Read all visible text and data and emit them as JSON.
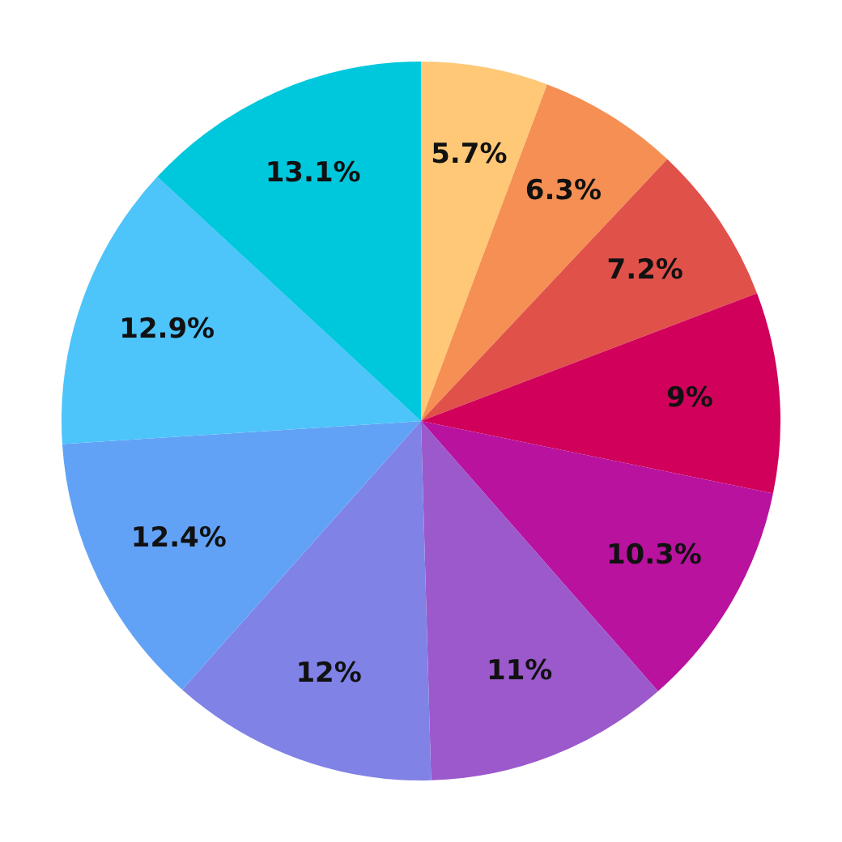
{
  "chart_data": {
    "type": "pie",
    "categories": [
      null,
      null,
      null,
      null,
      null,
      null,
      null,
      null,
      null,
      null
    ],
    "values": [
      5.7,
      6.3,
      7.2,
      9,
      10.3,
      11,
      12,
      12.4,
      12.9,
      13.1
    ],
    "value_labels": [
      "5.7%",
      "6.3%",
      "7.2%",
      "9%",
      "10.3%",
      "11%",
      "12%",
      "12.4%",
      "12.9%",
      "13.1%"
    ],
    "colors": [
      "#fec877",
      "#f58f53",
      "#e0514a",
      "#d1005a",
      "#b8129e",
      "#9b59cc",
      "#8082e6",
      "#62a2f6",
      "#4dc4fa",
      "#00c8dc"
    ],
    "legend": false
  }
}
